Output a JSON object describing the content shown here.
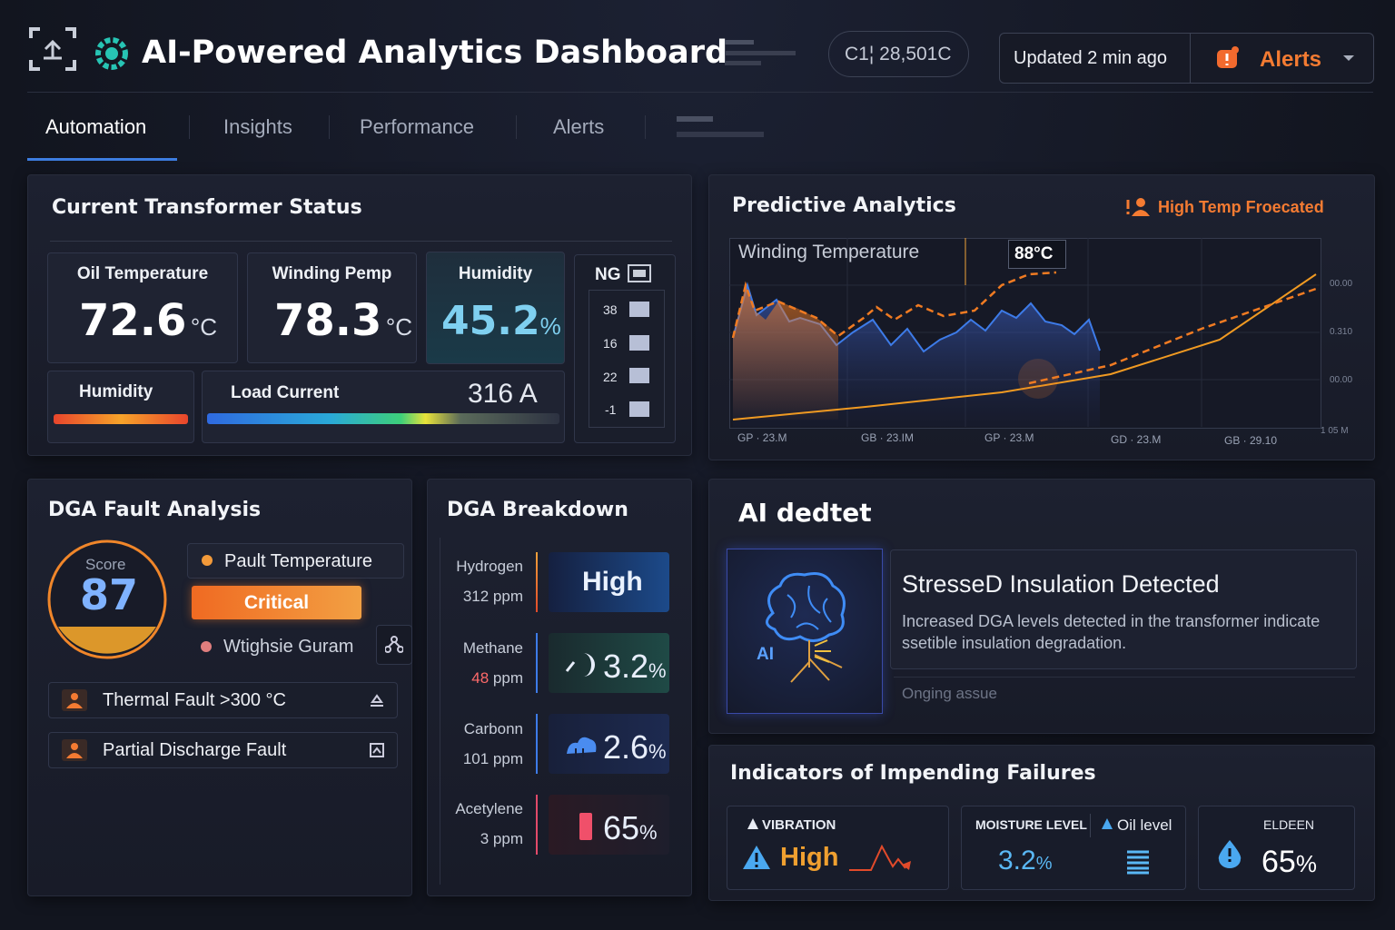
{
  "header": {
    "title": "AI-Powered Analytics Dashboard",
    "counter": "C1¦ 28,501C",
    "updated": "Updated 2 min ago",
    "alerts": "Alerts"
  },
  "tabs": [
    "Automation",
    "Insights",
    "Performance",
    "Alerts"
  ],
  "status": {
    "title": "Current Transformer Status",
    "cards": [
      {
        "label": "Oil Temperature",
        "value": 72.6,
        "unit": "°C"
      },
      {
        "label": "Winding Pemp",
        "value": 78.3,
        "unit": "°C"
      },
      {
        "label": "Humidity",
        "value": 45.2,
        "unit": "%"
      }
    ],
    "ng": {
      "label": "NG",
      "levels": [
        38,
        16,
        22,
        -1
      ]
    },
    "humidity_bar": "Humidity",
    "load": {
      "label": "Load Current",
      "value": 316,
      "unit": "A"
    }
  },
  "predictive": {
    "title": "Predictive Analytics",
    "tag": "High Temp Froecated",
    "chart_label": "Winding Temperature",
    "marker": "88°C",
    "x_labels": [
      "GP · 23.M",
      "GB · 23.IM",
      "GP · 23.M",
      "GD · 23.M",
      "GB · 29.10"
    ],
    "y_labels": [
      "00.00",
      "0.310",
      "00.00",
      "1 05 M"
    ]
  },
  "fault": {
    "title": "DGA Fault Analysis",
    "score_label": "Score",
    "score": 87,
    "items": [
      "Pault Temperature",
      "Critical",
      "Wtighsie Guram"
    ],
    "faults": [
      "Thermal Fault >300 °C",
      "Partial Discharge Fault"
    ]
  },
  "breakdown": {
    "title": "DGA Breakdown",
    "rows": [
      {
        "gas": "Hydrogen",
        "ppm": 312,
        "unit": "ppm",
        "level": "High"
      },
      {
        "gas": "Methane",
        "ppm": 48,
        "unit": "ppm",
        "value": 3.2,
        "pct": "%"
      },
      {
        "gas": "Carbonn",
        "ppm": 101,
        "unit": "ppm",
        "value": 2.6,
        "pct": "%"
      },
      {
        "gas": "Acetylene",
        "ppm": 3,
        "unit": "ppm",
        "value": 65,
        "pct": "%"
      }
    ]
  },
  "ai": {
    "title": "AI dedtet",
    "badge": "AI",
    "headline": "StresseD Insulation Detected",
    "description": "Increased DGA levels detected in the transformer indicate ssetible insulation degradation.",
    "status": "Onging assue"
  },
  "indicators": {
    "title": "Indicators of Impending Failures",
    "items": [
      {
        "label": "VIBRATION",
        "value": "High"
      },
      {
        "label": "MOISTURE LEVEL",
        "value": 3.2,
        "unit": "%"
      },
      {
        "label": "Oil level"
      },
      {
        "label": "ELDEEN",
        "value": 65,
        "unit": "%"
      }
    ]
  }
}
